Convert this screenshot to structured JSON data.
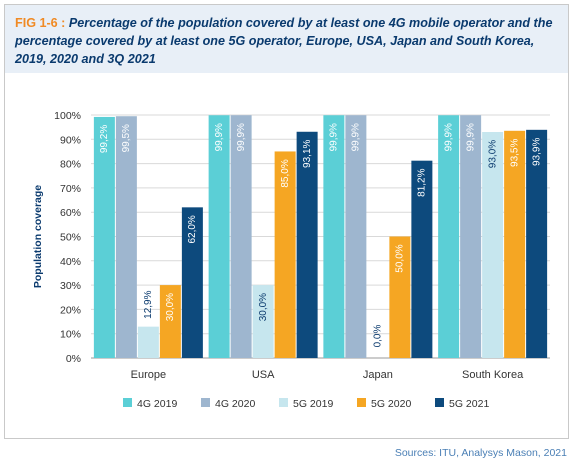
{
  "figure": {
    "label": "FIG 1-6 : ",
    "title": "Percentage of the population covered by at least one 4G mobile operator and the percentage covered by at least one 5G operator, Europe, USA, Japan and South Korea, 2019, 2020 and 3Q 2021",
    "source": "Sources: ITU, Analysys Mason, 2021"
  },
  "colors": {
    "title_bg": "#e8eff7",
    "title_text": "#0a3a6e",
    "fig_label": "#f08a24",
    "source_text": "#4a7fb5"
  },
  "chart_data": {
    "type": "bar",
    "categories": [
      "Europe",
      "USA",
      "Japan",
      "South Korea"
    ],
    "ylabel": "Population coverage",
    "xlabel": "",
    "ylim": [
      0,
      100
    ],
    "yticks": [
      "0%",
      "10%",
      "20%",
      "30%",
      "40%",
      "50%",
      "60%",
      "70%",
      "80%",
      "90%",
      "100%"
    ],
    "grid": true,
    "legend_position": "bottom",
    "series": [
      {
        "name": "4G 2019",
        "color": "#5bcfd6",
        "values": [
          99.2,
          99.9,
          99.9,
          99.9
        ],
        "labels": [
          "99,2%",
          "99,9%",
          "99,9%",
          "99,9%"
        ]
      },
      {
        "name": "4G 2020",
        "color": "#9eb6cf",
        "values": [
          99.5,
          99.9,
          99.9,
          99.9
        ],
        "labels": [
          "99,5%",
          "99,9%",
          "99,9%",
          "99,9%"
        ]
      },
      {
        "name": "5G 2019",
        "color": "#c6e6ee",
        "values": [
          12.9,
          30.0,
          0.0,
          93.0
        ],
        "labels": [
          "12,9%",
          "30,0%",
          "0,0%",
          "93,0%"
        ]
      },
      {
        "name": "5G 2020",
        "color": "#f5a623",
        "values": [
          30.0,
          85.0,
          50.0,
          93.5
        ],
        "labels": [
          "30,0%",
          "85,0%",
          "50,0%",
          "93,5%"
        ]
      },
      {
        "name": "5G 2021",
        "color": "#0d4a7d",
        "values": [
          62.0,
          93.1,
          81.2,
          93.9
        ],
        "labels": [
          "62,0%",
          "93,1%",
          "81,2%",
          "93,9%"
        ]
      }
    ]
  }
}
